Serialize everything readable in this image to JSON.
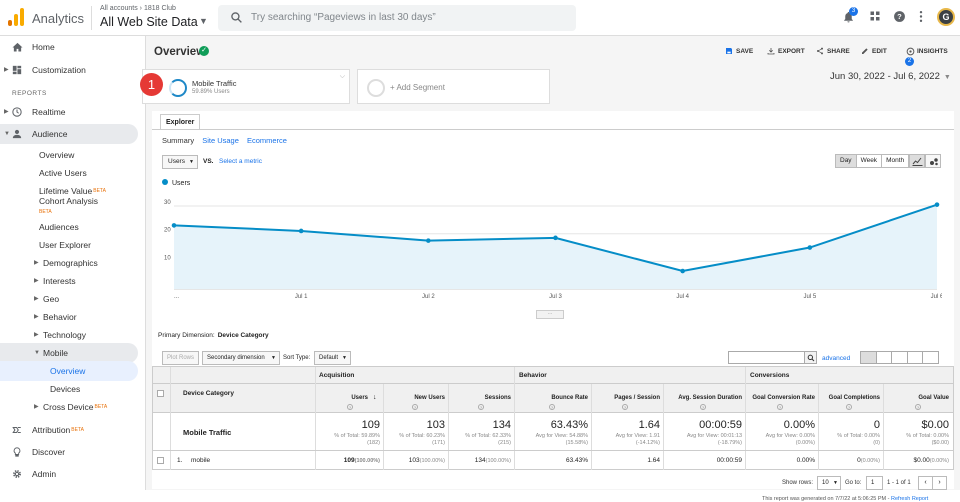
{
  "topbar": {
    "app_name": "Analytics",
    "account_path": "All accounts › 1818 Club",
    "property_name": "All Web Site Data",
    "search_placeholder": "Try searching “Pageviews in last 30 days”",
    "notification_count": "3",
    "avatar_letter": "G"
  },
  "sidebar": {
    "reports_header": "REPORTS",
    "items": [
      {
        "label": "Home"
      },
      {
        "label": "Customization"
      },
      {
        "label": "Realtime"
      },
      {
        "label": "Audience"
      },
      {
        "label": "Overview"
      },
      {
        "label": "Active Users"
      },
      {
        "label": "Lifetime Value",
        "badge": "BETA"
      },
      {
        "label": "Cohort Analysis",
        "badge": "BETA"
      },
      {
        "label": "Audiences"
      },
      {
        "label": "User Explorer"
      },
      {
        "label": "Demographics"
      },
      {
        "label": "Interests"
      },
      {
        "label": "Geo"
      },
      {
        "label": "Behavior"
      },
      {
        "label": "Technology"
      },
      {
        "label": "Mobile"
      },
      {
        "label": "Overview"
      },
      {
        "label": "Devices"
      },
      {
        "label": "Cross Device",
        "badge": "BETA"
      },
      {
        "label": "Attribution",
        "badge": "BETA"
      },
      {
        "label": "Discover"
      },
      {
        "label": "Admin"
      }
    ]
  },
  "header": {
    "title": "Overview",
    "actions": [
      "SAVE",
      "EXPORT",
      "SHARE",
      "EDIT",
      "INSIGHTS"
    ],
    "insights_count": "2"
  },
  "segments": {
    "marker": "1",
    "active": {
      "name": "Mobile Traffic",
      "subtitle": "59.89% Users"
    },
    "add_label": "+ Add Segment"
  },
  "date_range": "Jun 30, 2022 - Jul 6, 2022",
  "explorer": {
    "tab": "Explorer",
    "subtabs": [
      "Summary",
      "Site Usage",
      "Ecommerce"
    ],
    "metric": "Users",
    "vs": "VS.",
    "select_metric": "Select a metric",
    "granularity": [
      "Day",
      "Week",
      "Month"
    ]
  },
  "chart_data": {
    "type": "line",
    "x": [
      "...",
      "Jul 1",
      "Jul 2",
      "Jul 3",
      "Jul 4",
      "Jul 5",
      "Jul 6"
    ],
    "series": [
      {
        "name": "Users",
        "values": [
          23,
          21,
          17.5,
          18.5,
          6.5,
          15,
          30.5
        ]
      }
    ],
    "yticks": [
      10,
      20,
      30
    ],
    "ylim": [
      0,
      34
    ],
    "grid": true,
    "legend": "top-left",
    "color": "#058dc7"
  },
  "table": {
    "primary_dimension_label": "Primary Dimension:",
    "primary_dimension": "Device Category",
    "plot_rows": "Plot Rows",
    "secondary_dimension": "Secondary dimension",
    "sort_type_label": "Sort Type:",
    "sort_type": "Default",
    "advanced": "advanced",
    "dim_header": "Device Category",
    "groups": [
      "Acquisition",
      "Behavior",
      "Conversions"
    ],
    "columns": [
      "Users",
      "New Users",
      "Sessions",
      "Bounce Rate",
      "Pages / Session",
      "Avg. Session Duration",
      "Goal Conversion Rate",
      "Goal Completions",
      "Goal Value"
    ],
    "totals_label": "Mobile Traffic",
    "totals": [
      {
        "value": "109",
        "sub1": "% of Total: 59.89%",
        "sub2": "(182)"
      },
      {
        "value": "103",
        "sub1": "% of Total: 60.23%",
        "sub2": "(171)"
      },
      {
        "value": "134",
        "sub1": "% of Total: 62.33%",
        "sub2": "(215)"
      },
      {
        "value": "63.43%",
        "sub1": "Avg for View: 54.88%",
        "sub2": "(15.58%)"
      },
      {
        "value": "1.64",
        "sub1": "Avg for View: 1.91",
        "sub2": "(-14.12%)"
      },
      {
        "value": "00:00:59",
        "sub1": "Avg for View: 00:01:13",
        "sub2": "(-18.79%)"
      },
      {
        "value": "0.00%",
        "sub1": "Avg for View: 0.00%",
        "sub2": "(0.00%)"
      },
      {
        "value": "0",
        "sub1": "% of Total: 0.00%",
        "sub2": "(0)"
      },
      {
        "value": "$0.00",
        "sub1": "% of Total: 0.00%",
        "sub2": "($0.00)"
      }
    ],
    "row": {
      "index": "1.",
      "label": "mobile",
      "values": [
        {
          "v": "109",
          "p": "(100.00%)"
        },
        {
          "v": "103",
          "p": "(100.00%)"
        },
        {
          "v": "134",
          "p": "(100.00%)"
        },
        {
          "v": "63.43%",
          "p": ""
        },
        {
          "v": "1.64",
          "p": ""
        },
        {
          "v": "00:00:59",
          "p": ""
        },
        {
          "v": "0.00%",
          "p": ""
        },
        {
          "v": "0",
          "p": "(0.00%)"
        },
        {
          "v": "$0.00",
          "p": "(0.00%)"
        }
      ]
    },
    "show_rows_label": "Show rows:",
    "show_rows": "10",
    "goto_label": "Go to:",
    "goto": "1",
    "pager": "1 - 1 of 1",
    "generated": "This report was generated on 7/7/22 at 5:06:25 PM -",
    "refresh": "Refresh Report"
  }
}
